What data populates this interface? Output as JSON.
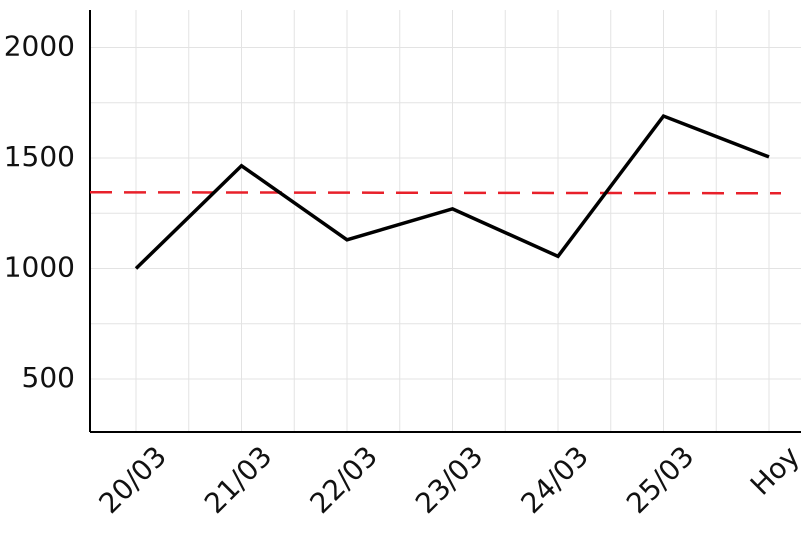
{
  "chart_data": {
    "type": "line",
    "categories": [
      "20/03",
      "21/03",
      "22/03",
      "23/03",
      "24/03",
      "25/03",
      "Hoy"
    ],
    "series": [
      {
        "values": [
          1000,
          1465,
          1130,
          1270,
          1055,
          1690,
          1505
        ],
        "color": "#000000"
      }
    ],
    "reference_line": {
      "value": 1345,
      "color": "#e8202a",
      "style": "dashed"
    },
    "yticks": [
      500,
      1000,
      1500,
      2000
    ],
    "ylim": [
      260,
      2170
    ],
    "grid": true,
    "legend": "none"
  }
}
